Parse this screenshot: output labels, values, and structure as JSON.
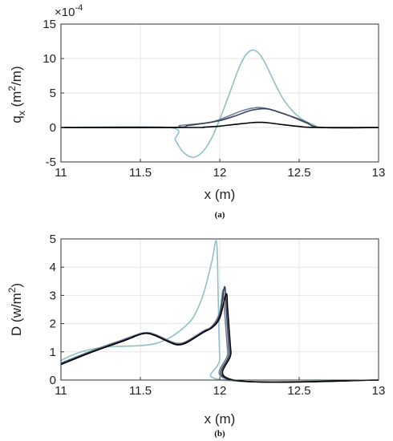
{
  "chart_data": [
    {
      "type": "line",
      "caption": "(a)",
      "xlabel": "x (m)",
      "ylabel_main": "q",
      "ylabel_sub": "x",
      "ylabel_unit_pre": "(m",
      "ylabel_unit_sup": "2",
      "ylabel_unit_post": "/m)",
      "exponent_base": "×10",
      "exponent_power": "-4",
      "xlim": [
        11,
        13
      ],
      "ylim": [
        -5,
        15
      ],
      "xticks": [
        "11",
        "11.5",
        "12",
        "12.5",
        "13"
      ],
      "xtick_values": [
        11,
        11.5,
        12,
        12.5,
        13
      ],
      "yticks": [
        "-5",
        "0",
        "5",
        "10",
        "15"
      ],
      "ytick_values": [
        -5,
        0,
        5,
        10,
        15
      ],
      "grid": true,
      "series": [
        {
          "color": "#8fc1c3",
          "x": [
            11,
            11.68,
            11.72,
            11.76,
            11.8,
            11.84,
            11.88,
            11.92,
            11.96,
            12.0,
            12.04,
            12.08,
            12.12,
            12.16,
            12.2,
            12.24,
            12.28,
            12.32,
            12.36,
            12.4,
            12.45,
            12.5,
            12.55,
            12.6,
            12.64,
            13
          ],
          "y": [
            0,
            0,
            -1.8,
            -3.3,
            -4.1,
            -4.3,
            -3.8,
            -2.7,
            -1.0,
            1.2,
            3.6,
            6.1,
            8.6,
            10.4,
            11.2,
            10.9,
            9.6,
            7.7,
            5.8,
            4.1,
            2.6,
            1.5,
            0.8,
            0.3,
            0,
            0
          ]
        },
        {
          "color": "#6f7f98",
          "x": [
            11,
            11.68,
            11.75,
            11.85,
            11.95,
            12.05,
            12.15,
            12.25,
            12.35,
            12.45,
            12.55,
            12.64,
            13
          ],
          "y": [
            0,
            0,
            0.3,
            0.5,
            0.8,
            1.6,
            2.5,
            2.9,
            2.4,
            1.6,
            0.6,
            0,
            0
          ]
        },
        {
          "color": "#3a3f5c",
          "x": [
            11,
            11.7,
            11.8,
            11.9,
            12.0,
            12.1,
            12.2,
            12.3,
            12.4,
            12.5,
            12.55,
            12.64,
            13
          ],
          "y": [
            0,
            0,
            0.3,
            0.6,
            1.0,
            1.7,
            2.5,
            2.7,
            2.0,
            1.2,
            0.7,
            0,
            0
          ]
        },
        {
          "color": "#000000",
          "x": [
            11,
            11.82,
            11.9,
            12.0,
            12.1,
            12.2,
            12.25,
            12.3,
            12.4,
            12.5,
            12.6,
            13
          ],
          "y": [
            0,
            0,
            0.05,
            0.2,
            0.45,
            0.7,
            0.75,
            0.7,
            0.4,
            0.15,
            0,
            0
          ]
        }
      ]
    },
    {
      "type": "line",
      "caption": "(b)",
      "xlabel": "x (m)",
      "ylabel_main": "D (w/m",
      "ylabel_unit_sup": "2",
      "ylabel_unit_post": ")",
      "xlim": [
        11,
        13
      ],
      "ylim": [
        0,
        5
      ],
      "xticks": [
        "11",
        "11.5",
        "12",
        "12.5",
        "13"
      ],
      "xtick_values": [
        11,
        11.5,
        12,
        12.5,
        13
      ],
      "yticks": [
        "0",
        "1",
        "2",
        "3",
        "4",
        "5"
      ],
      "ytick_values": [
        0,
        1,
        2,
        3,
        4,
        5
      ],
      "grid": true,
      "series": [
        {
          "color": "#8fc1c3",
          "x": [
            11,
            11.1,
            11.2,
            11.3,
            11.4,
            11.5,
            11.6,
            11.7,
            11.8,
            11.85,
            11.9,
            11.95,
            11.98,
            11.99,
            12.0,
            12.02,
            13
          ],
          "y": [
            0.7,
            0.95,
            1.1,
            1.18,
            1.2,
            1.22,
            1.3,
            1.55,
            2.0,
            2.4,
            3.1,
            4.2,
            4.9,
            3.0,
            0.8,
            0,
            0
          ]
        },
        {
          "color": "#6f7f98",
          "x": [
            11,
            11.2,
            11.4,
            11.5,
            11.55,
            11.6,
            11.7,
            11.75,
            11.8,
            11.9,
            11.95,
            12.0,
            12.02,
            12.03,
            12.05,
            12.07,
            13
          ],
          "y": [
            0.6,
            1.05,
            1.45,
            1.65,
            1.68,
            1.6,
            1.35,
            1.3,
            1.4,
            1.75,
            1.9,
            2.4,
            3.2,
            2.5,
            1.0,
            0,
            0
          ]
        },
        {
          "color": "#3a3f5c",
          "x": [
            11,
            11.2,
            11.4,
            11.5,
            11.55,
            11.6,
            11.7,
            11.75,
            11.8,
            11.9,
            11.95,
            12.0,
            12.03,
            12.04,
            12.06,
            12.08,
            13
          ],
          "y": [
            0.58,
            1.02,
            1.42,
            1.63,
            1.66,
            1.58,
            1.32,
            1.27,
            1.38,
            1.72,
            1.88,
            2.3,
            3.3,
            2.6,
            1.0,
            0,
            0
          ]
        },
        {
          "color": "#000000",
          "x": [
            11,
            11.2,
            11.4,
            11.5,
            11.55,
            11.6,
            11.7,
            11.75,
            11.8,
            11.9,
            11.95,
            12.0,
            12.04,
            12.05,
            12.07,
            12.09,
            13
          ],
          "y": [
            0.55,
            1.0,
            1.4,
            1.62,
            1.65,
            1.56,
            1.3,
            1.25,
            1.35,
            1.7,
            1.85,
            2.2,
            3.05,
            2.5,
            1.0,
            0,
            0
          ]
        }
      ]
    }
  ]
}
